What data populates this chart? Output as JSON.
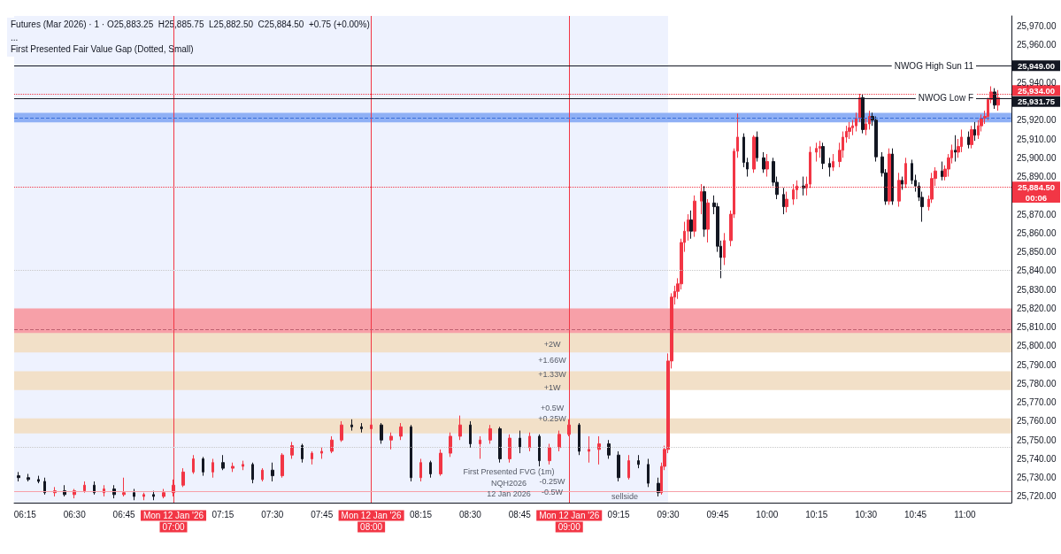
{
  "chart_data": {
    "type": "candlestick",
    "title": "Futures (Mar 2026) · 1 · O25,883.25  H25,885.75  L25,882.50  C25,884.50  +0.75 (+0.00%)",
    "subtitle": "...\nFirst Presented Fair Value Gap (Dotted, Small)",
    "colors": [
      "#131722",
      "#131722",
      "#131722",
      "#131722",
      "#f23645",
      "#131722",
      "#f23645",
      "#f23645",
      "#131722",
      "#f23645",
      "#131722",
      "#f23645",
      "#131722",
      "#f23645",
      "#131722",
      "#f23645",
      "#f23645",
      "#f23645",
      "#f23645",
      "#131722",
      "#f23645",
      "#131722",
      "#f23645",
      "#f23645",
      "#131722",
      "#f23645",
      "#131722",
      "#f23645",
      "#f23645",
      "#131722",
      "#f23645",
      "#f23645",
      "#f23645",
      "#f23645",
      "#131722",
      "#131722",
      "#f23645",
      "#131722",
      "#f23645",
      "#f23645",
      "#131722",
      "#f23645",
      "#131722",
      "#f23645",
      "#f23645",
      "#f23645",
      "#131722",
      "#f23645",
      "#f23645",
      "#131722",
      "#f23645",
      "#131722",
      "#f23645",
      "#131722",
      "#f23645",
      "#f23645",
      "#f23645",
      "#131722",
      "#f23645",
      "#f23645",
      "#131722",
      "#131722",
      "#f23645",
      "#131722",
      "#131722",
      "#131722",
      "#f23645",
      "#f23645",
      "#f23645",
      "#f23645",
      "#f23645",
      "#f23645",
      "#f23645",
      "#f23645",
      "#f23645",
      "#131722",
      "#f23645",
      "#f23645",
      "#131722",
      "#f23645",
      "#131722",
      "#131722",
      "#131722",
      "#f23645",
      "#f23645",
      "#f23645",
      "#f23645",
      "#131722",
      "#131722",
      "#f23645",
      "#131722",
      "#131722",
      "#f23645",
      "#131722",
      "#131722",
      "#131722",
      "#f23645",
      "#f23645",
      "#f23645",
      "#131722",
      "#f23645",
      "#f23645",
      "#f23645",
      "#f23645",
      "#131722",
      "#131722",
      "#f23645",
      "#f23645",
      "#f23645",
      "#f23645",
      "#f23645",
      "#f23645",
      "#f23645",
      "#f23645",
      "#131722",
      "#f23645",
      "#f23645",
      "#131722",
      "#131722",
      "#131722",
      "#131722",
      "#f23645",
      "#131722",
      "#f23645",
      "#131722",
      "#f23645",
      "#131722",
      "#131722",
      "#131722",
      "#131722",
      "#f23645",
      "#f23645",
      "#f23645",
      "#131722",
      "#f23645",
      "#f23645",
      "#f23645",
      "#131722",
      "#f23645",
      "#f23645",
      "#131722",
      "#f23645",
      "#131722",
      "#f23645",
      "#f23645",
      "#f23645",
      "#f23645",
      "#f23645",
      "#131722",
      "#f23645"
    ],
    "x": [
      6.217,
      6.267,
      6.317,
      6.35,
      6.4,
      6.45,
      6.5,
      6.55,
      6.6,
      6.65,
      6.7,
      6.75,
      6.8,
      6.85,
      6.9,
      6.95,
      7.0,
      7.05,
      7.1,
      7.15,
      7.2,
      7.25,
      7.3,
      7.35,
      7.4,
      7.45,
      7.5,
      7.55,
      7.6,
      7.65,
      7.7,
      7.75,
      7.8,
      7.85,
      7.9,
      7.95,
      8.0,
      8.05,
      8.1,
      8.15,
      8.2,
      8.25,
      8.3,
      8.35,
      8.4,
      8.45,
      8.5,
      8.55,
      8.6,
      8.65,
      8.7,
      8.75,
      8.8,
      8.85,
      8.9,
      8.95,
      9.0,
      9.05,
      9.1,
      9.15,
      9.2,
      9.25,
      9.3,
      9.35,
      9.4,
      9.45,
      9.467,
      9.483,
      9.5,
      9.517,
      9.533,
      9.55,
      9.567,
      9.583,
      9.6,
      9.617,
      9.633,
      9.667,
      9.683,
      9.7,
      9.733,
      9.75,
      9.767,
      9.783,
      9.817,
      9.833,
      9.85,
      9.883,
      9.9,
      9.933,
      9.95,
      9.983,
      10.0,
      10.033,
      10.05,
      10.083,
      10.1,
      10.133,
      10.15,
      10.183,
      10.2,
      10.217,
      10.25,
      10.267,
      10.283,
      10.317,
      10.333,
      10.367,
      10.383,
      10.4,
      10.417,
      10.433,
      10.45,
      10.467,
      10.483,
      10.5,
      10.517,
      10.533,
      10.55,
      10.583,
      10.6,
      10.617,
      10.633,
      10.667,
      10.683,
      10.7,
      10.733,
      10.75,
      10.767,
      10.783,
      10.817,
      10.833,
      10.85,
      10.883,
      10.9,
      10.917,
      10.933,
      10.95,
      10.967,
      10.983,
      11.017,
      11.033,
      11.05,
      11.067,
      11.083,
      11.1,
      11.117,
      11.133,
      11.15,
      11.167
    ],
    "ohlc": [
      [
        25731,
        25733,
        25728,
        25730
      ],
      [
        25730,
        25732,
        25728,
        25729
      ],
      [
        25729,
        25731,
        25727,
        25728
      ],
      [
        25728,
        25730,
        25721,
        25722
      ],
      [
        25722,
        25725,
        25720,
        25723
      ],
      [
        25723,
        25726,
        25720,
        25721
      ],
      [
        25721,
        25724,
        25719,
        25723
      ],
      [
        25723,
        25728,
        25722,
        25726
      ],
      [
        25726,
        25728,
        25721,
        25722
      ],
      [
        25722,
        25726,
        25720,
        25724
      ],
      [
        25724,
        25726,
        25719,
        25721
      ],
      [
        25721,
        25730,
        25720,
        25722
      ],
      [
        25722,
        25724,
        25718,
        25720
      ],
      [
        25720,
        25722,
        25718,
        25721
      ],
      [
        25721,
        25723,
        25718,
        25720
      ],
      [
        25720,
        25724,
        25719,
        25722
      ],
      [
        25722,
        25729,
        25720,
        25726
      ],
      [
        25726,
        25735,
        25725,
        25733
      ],
      [
        25733,
        25742,
        25732,
        25740
      ],
      [
        25740,
        25741,
        25731,
        25733
      ],
      [
        25733,
        25740,
        25730,
        25738
      ],
      [
        25738,
        25742,
        25734,
        25735
      ],
      [
        25735,
        25738,
        25733,
        25736
      ],
      [
        25736,
        25739,
        25734,
        25737
      ],
      [
        25737,
        25738,
        25727,
        25729
      ],
      [
        25729,
        25735,
        25728,
        25734
      ],
      [
        25734,
        25738,
        25728,
        25731
      ],
      [
        25731,
        25743,
        25730,
        25742
      ],
      [
        25742,
        25749,
        25740,
        25747
      ],
      [
        25747,
        25748,
        25738,
        25740
      ],
      [
        25740,
        25744,
        25737,
        25743
      ],
      [
        25743,
        25746,
        25740,
        25744
      ],
      [
        25744,
        25752,
        25743,
        25750
      ],
      [
        25750,
        25760,
        25749,
        25758
      ],
      [
        25758,
        25761,
        25755,
        25757
      ],
      [
        25757,
        25759,
        25754,
        25756
      ],
      [
        25756,
        25760,
        25751,
        25758
      ],
      [
        25758,
        25759,
        25748,
        25750
      ],
      [
        25750,
        25754,
        25745,
        25752
      ],
      [
        25752,
        25759,
        25750,
        25757
      ],
      [
        25757,
        25758,
        25728,
        25730
      ],
      [
        25730,
        25740,
        25728,
        25738
      ],
      [
        25738,
        25739,
        25730,
        25732
      ],
      [
        25732,
        25745,
        25731,
        25743
      ],
      [
        25743,
        25754,
        25741,
        25752
      ],
      [
        25752,
        25763,
        25750,
        25758
      ],
      [
        25758,
        25760,
        25746,
        25748
      ],
      [
        25748,
        25752,
        25740,
        25750
      ],
      [
        25750,
        25758,
        25748,
        25756
      ],
      [
        25756,
        25757,
        25738,
        25740
      ],
      [
        25740,
        25753,
        25738,
        25751
      ],
      [
        25751,
        25755,
        25743,
        25746
      ],
      [
        25746,
        25754,
        25744,
        25752
      ],
      [
        25752,
        25753,
        25736,
        25739
      ],
      [
        25739,
        25748,
        25737,
        25746
      ],
      [
        25746,
        25755,
        25744,
        25753
      ],
      [
        25753,
        25761,
        25752,
        25758
      ],
      [
        25758,
        25759,
        25742,
        25744
      ],
      [
        25744,
        25752,
        25738,
        25745
      ],
      [
        25745,
        25752,
        25737,
        25748
      ],
      [
        25748,
        25750,
        25740,
        25742
      ],
      [
        25742,
        25744,
        25728,
        25730
      ],
      [
        25730,
        25742,
        25729,
        25739
      ],
      [
        25739,
        25742,
        25735,
        25737
      ],
      [
        25737,
        25740,
        25725,
        25727
      ],
      [
        25727,
        25730,
        25720,
        25722
      ],
      [
        25722,
        25738,
        25721,
        25736
      ],
      [
        25736,
        25747,
        25734,
        25745
      ],
      [
        25745,
        25796,
        25743,
        25792
      ],
      [
        25792,
        25828,
        25788,
        25826
      ],
      [
        25826,
        25832,
        25822,
        25829
      ],
      [
        25829,
        25836,
        25825,
        25833
      ],
      [
        25833,
        25857,
        25830,
        25855
      ],
      [
        25855,
        25866,
        25850,
        25861
      ],
      [
        25861,
        25870,
        25856,
        25867
      ],
      [
        25867,
        25872,
        25857,
        25861
      ],
      [
        25861,
        25880,
        25858,
        25877
      ],
      [
        25877,
        25886,
        25870,
        25882
      ],
      [
        25882,
        25885,
        25858,
        25862
      ],
      [
        25862,
        25878,
        25855,
        25876
      ],
      [
        25876,
        25880,
        25870,
        25874
      ],
      [
        25874,
        25876,
        25850,
        25853
      ],
      [
        25853,
        25856,
        25836,
        25847
      ],
      [
        25847,
        25860,
        25843,
        25856
      ],
      [
        25856,
        25872,
        25853,
        25870
      ],
      [
        25870,
        25905,
        25868,
        25903.5
      ],
      [
        25903.5,
        25923.5,
        25900,
        25911
      ],
      [
        25911,
        25913,
        25895,
        25897.5
      ],
      [
        25897.5,
        25900,
        25890,
        25894
      ],
      [
        25894,
        25912,
        25892,
        25911
      ],
      [
        25911,
        25914,
        25898,
        25900
      ],
      [
        25900,
        25903,
        25892,
        25894
      ],
      [
        25894,
        25902,
        25890,
        25898
      ],
      [
        25898,
        25900,
        25885,
        25887
      ],
      [
        25887,
        25890,
        25878,
        25880.5
      ],
      [
        25880.5,
        25884,
        25870,
        25874
      ],
      [
        25874,
        25882,
        25871,
        25878
      ],
      [
        25878,
        25886,
        25875,
        25883
      ],
      [
        25883,
        25888,
        25878,
        25885
      ],
      [
        25885,
        25890,
        25880,
        25884
      ],
      [
        25884,
        25890,
        25880,
        25886
      ],
      [
        25886,
        25906,
        25884,
        25903
      ],
      [
        25903,
        25908,
        25898,
        25905
      ],
      [
        25905,
        25909,
        25900,
        25906
      ],
      [
        25906,
        25908,
        25894,
        25897
      ],
      [
        25897,
        25900,
        25890,
        25895
      ],
      [
        25895,
        25902,
        25893,
        25898
      ],
      [
        25898,
        25908,
        25895,
        25904
      ],
      [
        25904,
        25914,
        25900,
        25911
      ],
      [
        25911,
        25917,
        25908,
        25914
      ],
      [
        25914,
        25919,
        25910,
        25916
      ],
      [
        25916,
        25920,
        25912,
        25917
      ],
      [
        25917,
        25924,
        25914,
        25921
      ],
      [
        25921,
        25934,
        25919,
        25932
      ],
      [
        25932,
        25934,
        25913,
        25915
      ],
      [
        25915,
        25921,
        25912,
        25918
      ],
      [
        25918,
        25925,
        25915,
        25922
      ],
      [
        25922,
        25924,
        25917,
        25920
      ],
      [
        25920,
        25922,
        25898,
        25900.5
      ],
      [
        25900.5,
        25903,
        25890,
        25892
      ],
      [
        25892,
        25894,
        25875,
        25877
      ],
      [
        25877,
        25905,
        25875,
        25902
      ],
      [
        25902,
        25905,
        25875,
        25877
      ],
      [
        25877,
        25892,
        25874,
        25888
      ],
      [
        25888,
        25890,
        25883,
        25886
      ],
      [
        25886,
        25900,
        25884,
        25897
      ],
      [
        25897,
        25899,
        25886,
        25888
      ],
      [
        25888,
        25891,
        25882,
        25885
      ],
      [
        25885,
        25887,
        25877,
        25879
      ],
      [
        25879,
        25882,
        25866,
        25874
      ],
      [
        25874,
        25880,
        25872,
        25878
      ],
      [
        25878,
        25892,
        25876,
        25889
      ],
      [
        25889,
        25895,
        25885,
        25893
      ],
      [
        25893,
        25898,
        25888,
        25890
      ],
      [
        25890,
        25896,
        25888,
        25894
      ],
      [
        25894,
        25902,
        25890,
        25900
      ],
      [
        25900,
        25907,
        25897,
        25904
      ],
      [
        25904,
        25912,
        25898,
        25903
      ],
      [
        25903,
        25910,
        25900,
        25906
      ],
      [
        25906,
        25915,
        25903,
        25911
      ],
      [
        25911,
        25914,
        25905,
        25907
      ],
      [
        25907,
        25917,
        25905,
        25915
      ],
      [
        25915,
        25919,
        25909,
        25912
      ],
      [
        25912,
        25920,
        25910,
        25917
      ],
      [
        25917,
        25923,
        25914,
        25921
      ],
      [
        25921,
        25925,
        25918,
        25922
      ],
      [
        25922,
        25932,
        25920,
        25931
      ],
      [
        25931,
        25938,
        25929,
        25935
      ],
      [
        25935,
        25937,
        25926,
        25928
      ],
      [
        25928,
        25936,
        25925,
        25932
      ]
    ],
    "xlim": [
      6.195,
      11.235
    ],
    "xticks": [
      {
        "value": 6.25,
        "label": "06:15"
      },
      {
        "value": 6.5,
        "label": "06:30"
      },
      {
        "value": 6.75,
        "label": "06:45"
      },
      {
        "value": 7.0,
        "label": "Mon 12 Jan '26  07:00"
      },
      {
        "value": 7.25,
        "label": "07:15"
      },
      {
        "value": 7.5,
        "label": "07:30"
      },
      {
        "value": 7.75,
        "label": "07:45"
      },
      {
        "value": 8.0,
        "label": "Mon 12 Jan '26  08:00"
      },
      {
        "value": 8.25,
        "label": "08:15"
      },
      {
        "value": 8.5,
        "label": "08:30"
      },
      {
        "value": 8.75,
        "label": "08:45"
      },
      {
        "value": 9.0,
        "label": "Mon 12 Jan '26  09:00"
      },
      {
        "value": 9.25,
        "label": "09:15"
      },
      {
        "value": 9.5,
        "label": "09:30"
      },
      {
        "value": 9.75,
        "label": "09:45"
      },
      {
        "value": 10.0,
        "label": "10:00"
      },
      {
        "value": 10.25,
        "label": "10:15"
      },
      {
        "value": 10.5,
        "label": "10:30"
      },
      {
        "value": 10.75,
        "label": "10:45"
      },
      {
        "value": 11.0,
        "label": "11:00"
      }
    ],
    "ylim": [
      25716.7,
      25975.4
    ],
    "yticks": [
      {
        "value": 25720,
        "label": "25,720.00"
      },
      {
        "value": 25730,
        "label": "25,730.00"
      },
      {
        "value": 25740,
        "label": "25,740.00"
      },
      {
        "value": 25750,
        "label": "25,750.00"
      },
      {
        "value": 25760,
        "label": "25,760.00"
      },
      {
        "value": 25770,
        "label": "25,770.00"
      },
      {
        "value": 25780,
        "label": "25,780.00"
      },
      {
        "value": 25790,
        "label": "25,790.00"
      },
      {
        "value": 25800,
        "label": "25,800.00"
      },
      {
        "value": 25810,
        "label": "25,810.00"
      },
      {
        "value": 25820,
        "label": "25,820.00"
      },
      {
        "value": 25830,
        "label": "25,830.00"
      },
      {
        "value": 25840,
        "label": "25,840.00"
      },
      {
        "value": 25850,
        "label": "25,850.00"
      },
      {
        "value": 25860,
        "label": "25,860.00"
      },
      {
        "value": 25870,
        "label": "25,870.00"
      },
      {
        "value": 25884.5,
        "label": "25,884.50"
      },
      {
        "value": 25890,
        "label": "25,890.00"
      },
      {
        "value": 25900,
        "label": "25,900.00"
      },
      {
        "value": 25910,
        "label": "25,910.00"
      },
      {
        "value": 25920,
        "label": "25,920.00"
      },
      {
        "value": 25931.75,
        "label": "25,931.75"
      },
      {
        "value": 25934,
        "label": "25,934.00"
      },
      {
        "value": 25940,
        "label": "25,940.00"
      },
      {
        "value": 25949,
        "label": "25,949.00"
      },
      {
        "value": 25960,
        "label": "25,960.00"
      },
      {
        "value": 25970,
        "label": "25,970.00"
      }
    ],
    "grid": false,
    "bands": [
      {
        "axis": "x",
        "from": 6.195,
        "to": 9.5,
        "color": "#eef2fe"
      },
      {
        "axis": "y",
        "from": 25918.8,
        "to": 25923.9,
        "color": "#8fb0f5"
      },
      {
        "axis": "y",
        "from": 25797.5,
        "to": 25820,
        "color": "#f7a0a8"
      },
      {
        "axis": "y",
        "from": 25796.5,
        "to": 25806.9,
        "color": "#f2e0c8"
      },
      {
        "axis": "y",
        "from": 25776.6,
        "to": 25786.6,
        "color": "#f2e0c8"
      },
      {
        "axis": "y",
        "from": 25753.5,
        "to": 25761.5,
        "color": "#f2e0c8"
      }
    ],
    "ref_lines": [
      {
        "axis": "x",
        "value": 7.0,
        "label": null,
        "color": "#f23645",
        "line_style": "solid"
      },
      {
        "axis": "x",
        "value": 8.0,
        "label": null,
        "color": "#f23645",
        "line_style": "solid"
      },
      {
        "axis": "x",
        "value": 9.0,
        "label": null,
        "color": "#f23645",
        "line_style": "solid"
      },
      {
        "axis": "y",
        "value": 25949,
        "label": "NWOG High Sun 11",
        "color": "#131722",
        "line_style": "solid"
      },
      {
        "axis": "y",
        "value": 25931.75,
        "label": "NWOG Low F",
        "color": "#131722",
        "line_style": "solid"
      },
      {
        "axis": "y",
        "value": 25934,
        "label": null,
        "color": "#f23645",
        "line_style": "dotted"
      },
      {
        "axis": "y",
        "value": 25884.5,
        "label": null,
        "color": "#f23645",
        "line_style": "dotted"
      },
      {
        "axis": "y",
        "value": 25921.3,
        "label": null,
        "color": "#3a6fd8",
        "line_style": "dashed"
      },
      {
        "axis": "y",
        "value": 25808.7,
        "label": null,
        "color": "#c06070",
        "line_style": "dashed"
      },
      {
        "axis": "y",
        "value": 25840.5,
        "label": null,
        "color": "#c8c8c8",
        "line_style": "dotted"
      },
      {
        "axis": "y",
        "value": 25746,
        "label": null,
        "color": "#c8c8c8",
        "line_style": "dotted"
      },
      {
        "axis": "y",
        "value": 25722.5,
        "label": null,
        "color": "#f7a0a8",
        "line_style": "solid"
      }
    ],
    "annotations": [
      "+2W",
      "+1.66W",
      "+1.33W",
      "+1W",
      "+0.5W",
      "+0.25W",
      "-0.25W",
      "-0.5W",
      "First Presented FVG (1m)",
      "NQH2026",
      "12 Jan 2026",
      "sellside",
      "00:06"
    ]
  }
}
